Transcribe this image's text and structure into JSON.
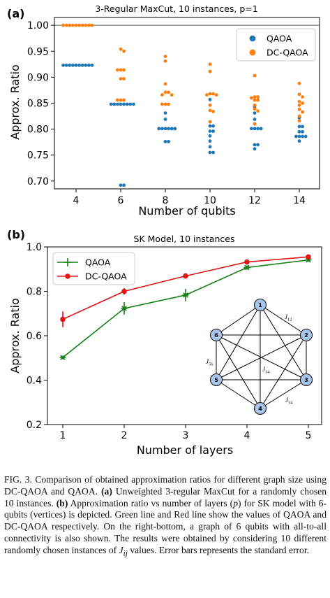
{
  "figure": {
    "caption": {
      "label": "FIG. 3.",
      "t1": " Comparison of obtained approximation ratios for different graph size using DC-QAOA and QAOA. ",
      "a_tag": "(a)",
      "t2": " Unweighted 3-regular MaxCut for a randomly chosen 10 instances. ",
      "b_tag": "(b)",
      "t3": " Approximation ratio vs number of layers (",
      "p_sym": "p",
      "t4": ") for SK model with 6-qubits (vertices) is depicted.  Green line and Red line show the values of QAOA and DC-QAOA respectively.  On the right-bottom, a graph of 6 qubits with all-to-all connectivity is also shown. The results were obtained by considering 10 different randomly chosen instances of ",
      "jij_sym": "J",
      "jij_sub": "ij",
      "t5": " values. Error bars represents the standard error."
    }
  },
  "chart_data": [
    {
      "panel_label": "(a)",
      "type": "scatter",
      "title": "3-Regular MaxCut, 10 instances, p=1",
      "xlabel": "Number of qubits",
      "ylabel": "Approx. Ratio",
      "x_ticks": [
        4,
        6,
        8,
        10,
        12,
        14
      ],
      "y_ticks": [
        "0.70",
        "0.75",
        "0.80",
        "0.85",
        "0.90",
        "0.95",
        "1.00"
      ],
      "ylim": [
        0.685,
        1.015
      ],
      "reference_line": 1.0,
      "legend_position": "top-right",
      "series": [
        {
          "name": "QAOA",
          "color": "#1f77b4",
          "points": {
            "4": [
              0.923,
              0.923,
              0.923,
              0.923,
              0.923,
              0.923,
              0.923,
              0.923,
              0.923,
              0.923
            ],
            "6": [
              0.692,
              0.692,
              0.848,
              0.848,
              0.848,
              0.848,
              0.848,
              0.848,
              0.848,
              0.848
            ],
            "8": [
              0.776,
              0.776,
              0.801,
              0.801,
              0.801,
              0.801,
              0.801,
              0.801,
              0.819,
              0.831
            ],
            "10": [
              0.755,
              0.755,
              0.766,
              0.777,
              0.787,
              0.796,
              0.796,
              0.806,
              0.806,
              0.857
            ],
            "12": [
              0.762,
              0.77,
              0.77,
              0.801,
              0.801,
              0.801,
              0.801,
              0.819,
              0.831,
              0.843
            ],
            "14": [
              0.777,
              0.786,
              0.786,
              0.786,
              0.786,
              0.795,
              0.795,
              0.805,
              0.805,
              0.822
            ]
          }
        },
        {
          "name": "DC-QAOA",
          "color": "#ff7f0e",
          "points": {
            "4": [
              1.0,
              1.0,
              1.0,
              1.0,
              1.0,
              1.0,
              1.0,
              1.0,
              1.0,
              1.0
            ],
            "6": [
              0.856,
              0.856,
              0.897,
              0.897,
              0.914,
              0.914,
              0.914,
              0.95,
              0.954,
              0.856
            ],
            "8": [
              0.848,
              0.848,
              0.866,
              0.866,
              0.871,
              0.871,
              0.887,
              0.931,
              0.94,
              0.848
            ],
            "10": [
              0.814,
              0.834,
              0.836,
              0.846,
              0.866,
              0.866,
              0.868,
              0.868,
              0.911,
              0.925
            ],
            "12": [
              0.81,
              0.835,
              0.839,
              0.846,
              0.856,
              0.856,
              0.86,
              0.862,
              0.862,
              0.903
            ],
            "14": [
              0.816,
              0.825,
              0.833,
              0.838,
              0.846,
              0.85,
              0.853,
              0.862,
              0.867,
              0.888
            ]
          }
        }
      ]
    },
    {
      "panel_label": "(b)",
      "type": "line",
      "title": "SK Model, 10 instances",
      "xlabel": "Number of layers",
      "ylabel": "Approx. Ratio",
      "x": [
        1,
        2,
        3,
        4,
        5
      ],
      "x_ticks": [
        1,
        2,
        3,
        4,
        5
      ],
      "y_ticks": [
        "0.2",
        "0.4",
        "0.6",
        "0.8",
        "1.0"
      ],
      "ylim": [
        0.2,
        1.0
      ],
      "legend_position": "top-left",
      "series": [
        {
          "name": "QAOA",
          "color": "#138013",
          "marker": "star",
          "values": [
            0.502,
            0.723,
            0.783,
            0.907,
            0.941
          ],
          "errors": [
            0.008,
            0.028,
            0.028,
            0.01,
            0.008
          ]
        },
        {
          "name": "DC-QAOA",
          "color": "#e51515",
          "marker": "circle",
          "values": [
            0.674,
            0.8,
            0.869,
            0.932,
            0.955
          ],
          "errors": [
            0.035,
            0.015,
            0.012,
            0.006,
            0.006
          ]
        }
      ],
      "inset_graph": {
        "nodes": [
          "1",
          "2",
          "3",
          "4",
          "5",
          "6"
        ],
        "edge_labels": [
          {
            "text": "J",
            "sub": "12"
          },
          {
            "text": "J",
            "sub": "14"
          },
          {
            "text": "J",
            "sub": "34"
          },
          {
            "text": "J",
            "sub": "56"
          }
        ],
        "node_color": "#a9c4ea"
      }
    }
  ]
}
